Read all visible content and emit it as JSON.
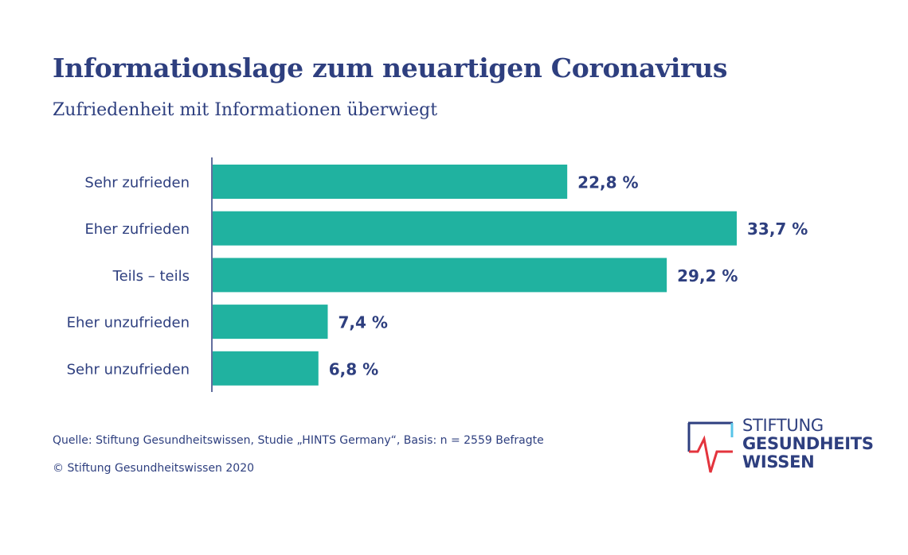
{
  "title": "Informationslage zum neuartigen Coronavirus",
  "subtitle": "Zufriedenheit mit Informationen überwiegt",
  "chart_data": {
    "type": "bar",
    "orientation": "horizontal",
    "categories": [
      "Sehr zufrieden",
      "Eher zufrieden",
      "Teils – teils",
      "Eher unzufrieden",
      "Sehr unzufrieden"
    ],
    "values": [
      22.8,
      33.7,
      29.2,
      7.4,
      6.8
    ],
    "value_labels": [
      "22,8 %",
      "33,7 %",
      "29,2 %",
      "7,4 %",
      "6,8 %"
    ],
    "unit": "%",
    "xlim": [
      0,
      33.7
    ],
    "bar_color": "#20b2a0",
    "grid": false
  },
  "footer": {
    "source": "Quelle: Stiftung Gesundheitswissen, Studie „HINTS Germany“, Basis: n = 2559 Befragte",
    "copyright": "© Stiftung Gesundheitswissen 2020"
  },
  "logo": {
    "line1": "STIFTUNG",
    "line2": "GESUNDHEITS",
    "line3": "WISSEN",
    "colors": {
      "frame": "#2e3f7f",
      "pulse": "#e3343d",
      "accent": "#58c4e8"
    }
  },
  "colors": {
    "text": "#2e3f7f",
    "bar": "#20b2a0"
  }
}
